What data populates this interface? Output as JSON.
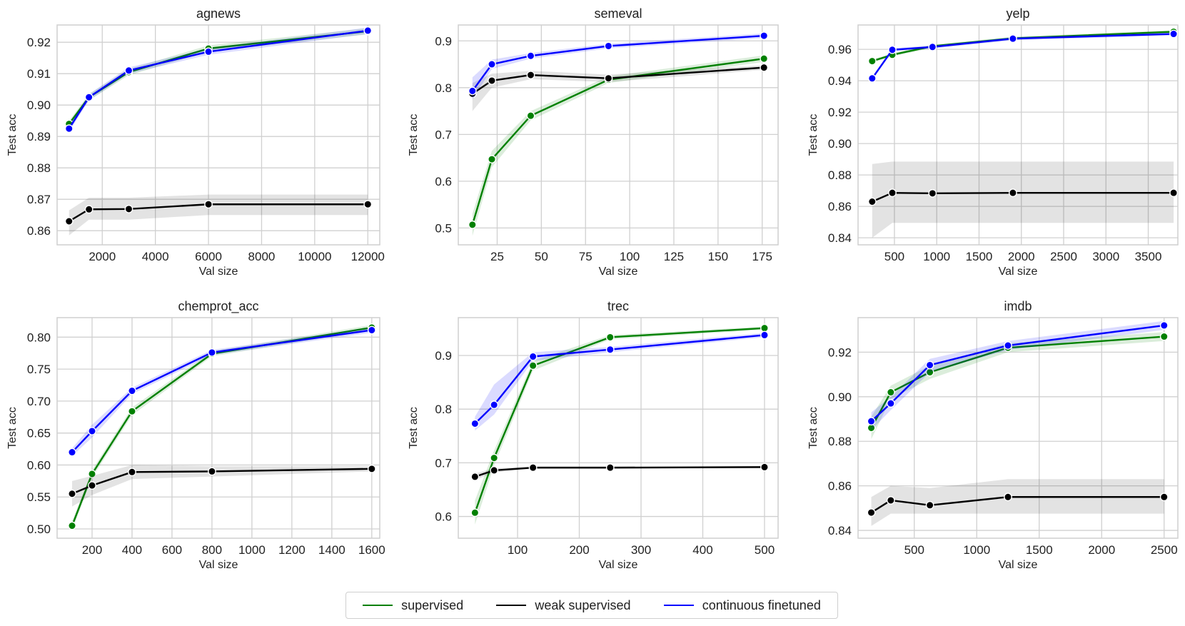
{
  "colors": {
    "supervised": "#008000",
    "weak supervised": "#000000",
    "continuous finetuned": "#0000ff"
  },
  "legend": {
    "items": [
      "supervised",
      "weak supervised",
      "continuous finetuned"
    ]
  },
  "chart_data": [
    {
      "type": "line",
      "title": "agnews",
      "xlabel": "Val size",
      "ylabel": "Test acc",
      "xlim": [
        300,
        12450
      ],
      "ylim": [
        0.8555,
        0.9255
      ],
      "xticks": [
        2000,
        4000,
        6000,
        8000,
        10000,
        12000
      ],
      "yticks": [
        0.86,
        0.87,
        0.88,
        0.89,
        0.9,
        0.91,
        0.92
      ],
      "ytick_labels": [
        "0.86",
        "0.87",
        "0.88",
        "0.89",
        "0.90",
        "0.91",
        "0.92"
      ],
      "x": [
        750,
        1500,
        3000,
        6000,
        12000
      ],
      "series": [
        {
          "name": "supervised",
          "values": [
            0.894,
            0.9025,
            0.9105,
            0.918,
            0.9235
          ],
          "lower": [
            0.893,
            0.9015,
            0.9095,
            0.917,
            0.9225
          ],
          "upper": [
            0.895,
            0.9035,
            0.9115,
            0.919,
            0.9245
          ]
        },
        {
          "name": "weak supervised",
          "values": [
            0.863,
            0.8668,
            0.8669,
            0.8684,
            0.8684
          ],
          "lower": [
            0.8585,
            0.8635,
            0.8635,
            0.865,
            0.865
          ],
          "upper": [
            0.8665,
            0.8705,
            0.8705,
            0.8715,
            0.8715
          ]
        },
        {
          "name": "continuous finetuned",
          "values": [
            0.8925,
            0.9025,
            0.911,
            0.917,
            0.9237
          ],
          "lower": [
            0.8915,
            0.9015,
            0.91,
            0.916,
            0.9227
          ],
          "upper": [
            0.8935,
            0.9035,
            0.912,
            0.918,
            0.9247
          ]
        }
      ]
    },
    {
      "type": "line",
      "title": "semeval",
      "xlabel": "Val size",
      "ylabel": "Test acc",
      "xlim": [
        3,
        184
      ],
      "ylim": [
        0.464,
        0.934
      ],
      "xticks": [
        25,
        50,
        75,
        100,
        125,
        150,
        175
      ],
      "yticks": [
        0.5,
        0.6,
        0.7,
        0.8,
        0.9
      ],
      "ytick_labels": [
        "0.5",
        "0.6",
        "0.7",
        "0.8",
        "0.9"
      ],
      "x": [
        11,
        22,
        44,
        88,
        176
      ],
      "series": [
        {
          "name": "supervised",
          "values": [
            0.507,
            0.647,
            0.74,
            0.817,
            0.862
          ],
          "lower": [
            0.483,
            0.63,
            0.73,
            0.81,
            0.855
          ],
          "upper": [
            0.53,
            0.665,
            0.75,
            0.824,
            0.869
          ]
        },
        {
          "name": "weak supervised",
          "values": [
            0.787,
            0.815,
            0.827,
            0.82,
            0.843
          ],
          "lower": [
            0.75,
            0.8,
            0.818,
            0.812,
            0.838
          ],
          "upper": [
            0.81,
            0.83,
            0.836,
            0.828,
            0.848
          ]
        },
        {
          "name": "continuous finetuned",
          "values": [
            0.793,
            0.85,
            0.868,
            0.889,
            0.911
          ],
          "lower": [
            0.775,
            0.84,
            0.862,
            0.884,
            0.906
          ],
          "upper": [
            0.822,
            0.86,
            0.874,
            0.894,
            0.916
          ]
        }
      ]
    },
    {
      "type": "line",
      "title": "yelp",
      "xlabel": "Val size",
      "ylabel": "Test acc",
      "xlim": [
        70,
        3850
      ],
      "ylim": [
        0.8355,
        0.9755
      ],
      "xticks": [
        500,
        1000,
        1500,
        2000,
        2500,
        3000,
        3500
      ],
      "yticks": [
        0.84,
        0.86,
        0.88,
        0.9,
        0.92,
        0.94,
        0.96
      ],
      "ytick_labels": [
        "0.84",
        "0.86",
        "0.88",
        "0.90",
        "0.92",
        "0.94",
        "0.96"
      ],
      "x": [
        237,
        475,
        950,
        1900,
        3800
      ],
      "series": [
        {
          "name": "supervised",
          "values": [
            0.9525,
            0.9565,
            0.962,
            0.967,
            0.9712
          ],
          "lower": [
            0.9515,
            0.9555,
            0.961,
            0.966,
            0.9702
          ],
          "upper": [
            0.9535,
            0.9575,
            0.963,
            0.968,
            0.9722
          ]
        },
        {
          "name": "weak supervised",
          "values": [
            0.863,
            0.8686,
            0.8683,
            0.8686,
            0.8686
          ],
          "lower": [
            0.84,
            0.8495,
            0.8495,
            0.8495,
            0.8495
          ],
          "upper": [
            0.887,
            0.8885,
            0.8885,
            0.8885,
            0.8885
          ]
        },
        {
          "name": "continuous finetuned",
          "values": [
            0.9415,
            0.9597,
            0.9615,
            0.9668,
            0.9698
          ],
          "lower": [
            0.9405,
            0.9587,
            0.9605,
            0.9658,
            0.9688
          ],
          "upper": [
            0.9425,
            0.9607,
            0.9625,
            0.9678,
            0.9708
          ]
        }
      ]
    },
    {
      "type": "line",
      "title": "chemprot_acc",
      "xlabel": "Val size",
      "ylabel": "Test acc",
      "xlim": [
        25,
        1640
      ],
      "ylim": [
        0.4855,
        0.8305
      ],
      "xticks": [
        200,
        400,
        600,
        800,
        1000,
        1200,
        1400,
        1600
      ],
      "yticks": [
        0.5,
        0.55,
        0.6,
        0.65,
        0.7,
        0.75,
        0.8
      ],
      "ytick_labels": [
        "0.50",
        "0.55",
        "0.60",
        "0.65",
        "0.70",
        "0.75",
        "0.80"
      ],
      "x": [
        100,
        200,
        400,
        800,
        1600
      ],
      "series": [
        {
          "name": "supervised",
          "values": [
            0.505,
            0.586,
            0.684,
            0.774,
            0.815
          ],
          "lower": [
            0.498,
            0.58,
            0.678,
            0.77,
            0.811
          ],
          "upper": [
            0.512,
            0.592,
            0.69,
            0.778,
            0.819
          ]
        },
        {
          "name": "weak supervised",
          "values": [
            0.555,
            0.568,
            0.589,
            0.59,
            0.594
          ],
          "lower": [
            0.535,
            0.553,
            0.578,
            0.582,
            0.59
          ],
          "upper": [
            0.575,
            0.583,
            0.6,
            0.598,
            0.598
          ]
        },
        {
          "name": "continuous finetuned",
          "values": [
            0.62,
            0.653,
            0.716,
            0.776,
            0.811
          ],
          "lower": [
            0.614,
            0.643,
            0.711,
            0.772,
            0.807
          ],
          "upper": [
            0.626,
            0.663,
            0.721,
            0.78,
            0.815
          ]
        }
      ]
    },
    {
      "type": "line",
      "title": "trec",
      "xlabel": "Val size",
      "ylabel": "Test acc",
      "xlim": [
        4,
        522
      ],
      "ylim": [
        0.5595,
        0.9705
      ],
      "xticks": [
        100,
        200,
        300,
        400,
        500
      ],
      "yticks": [
        0.6,
        0.7,
        0.8,
        0.9
      ],
      "ytick_labels": [
        "0.6",
        "0.7",
        "0.8",
        "0.9"
      ],
      "x": [
        31,
        62,
        125,
        250,
        500
      ],
      "series": [
        {
          "name": "supervised",
          "values": [
            0.607,
            0.709,
            0.881,
            0.934,
            0.951
          ],
          "lower": [
            0.585,
            0.695,
            0.872,
            0.93,
            0.948
          ],
          "upper": [
            0.63,
            0.723,
            0.89,
            0.938,
            0.954
          ]
        },
        {
          "name": "weak supervised",
          "values": [
            0.674,
            0.686,
            0.691,
            0.691,
            0.692
          ],
          "lower": [
            0.668,
            0.682,
            0.689,
            0.689,
            0.69
          ],
          "upper": [
            0.68,
            0.69,
            0.693,
            0.693,
            0.694
          ]
        },
        {
          "name": "continuous finetuned",
          "values": [
            0.773,
            0.808,
            0.898,
            0.911,
            0.938
          ],
          "lower": [
            0.76,
            0.79,
            0.89,
            0.906,
            0.934
          ],
          "upper": [
            0.786,
            0.846,
            0.906,
            0.916,
            0.942
          ]
        }
      ]
    },
    {
      "type": "line",
      "title": "imdb",
      "xlabel": "Val size",
      "ylabel": "Test acc",
      "xlim": [
        50,
        2610
      ],
      "ylim": [
        0.8365,
        0.9355
      ],
      "xticks": [
        500,
        1000,
        1500,
        2000,
        2500
      ],
      "yticks": [
        0.84,
        0.86,
        0.88,
        0.9,
        0.92
      ],
      "ytick_labels": [
        "0.84",
        "0.86",
        "0.88",
        "0.90",
        "0.92"
      ],
      "x": [
        156,
        312,
        625,
        1250,
        2500
      ],
      "series": [
        {
          "name": "supervised",
          "values": [
            0.886,
            0.902,
            0.911,
            0.922,
            0.927
          ],
          "lower": [
            0.881,
            0.899,
            0.908,
            0.92,
            0.925
          ],
          "upper": [
            0.891,
            0.905,
            0.914,
            0.924,
            0.929
          ]
        },
        {
          "name": "weak supervised",
          "values": [
            0.848,
            0.8535,
            0.8513,
            0.855,
            0.855
          ],
          "lower": [
            0.842,
            0.8475,
            0.8475,
            0.8475,
            0.8475
          ],
          "upper": [
            0.855,
            0.86,
            0.859,
            0.863,
            0.863
          ]
        },
        {
          "name": "continuous finetuned",
          "values": [
            0.889,
            0.897,
            0.9142,
            0.923,
            0.932
          ],
          "lower": [
            0.885,
            0.894,
            0.911,
            0.921,
            0.93
          ],
          "upper": [
            0.893,
            0.9,
            0.917,
            0.925,
            0.934
          ]
        }
      ]
    }
  ]
}
